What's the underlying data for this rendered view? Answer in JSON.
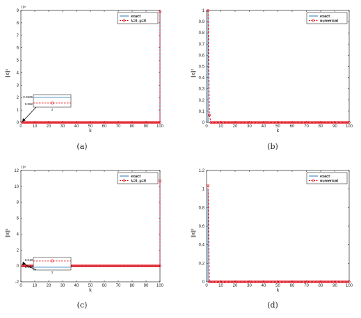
{
  "chart_data": [
    {
      "panel": "a",
      "type": "line",
      "caption": "(a)",
      "xlabel": "k",
      "ylabel": "∥x∥²",
      "y_exponent": "10⁷",
      "xlim": [
        0,
        100
      ],
      "ylim": [
        0,
        9
      ],
      "xticks": [
        0,
        10,
        20,
        30,
        40,
        50,
        60,
        70,
        80,
        90,
        100
      ],
      "yticks": [
        0,
        1,
        2,
        3,
        4,
        5,
        6,
        7,
        8,
        9
      ],
      "legend_position": "top-right",
      "series": [
        {
          "name": "exact",
          "style": "solid",
          "color": "#1f77b4",
          "x": [
            1,
            99,
            100,
            100
          ],
          "y": [
            0,
            0,
            0,
            8.9
          ]
        },
        {
          "name": "λ=0, μ=0",
          "style": "dashed-circle",
          "color": "#e8000b",
          "x_range": [
            1,
            100
          ],
          "spike": {
            "x": 100,
            "y": 8.9
          },
          "base_y": 0
        }
      ],
      "inset": {
        "yticks": [
          "0.0625",
          "0.062"
        ],
        "xtick": "2"
      }
    },
    {
      "panel": "b",
      "type": "line",
      "caption": "(b)",
      "xlabel": "k",
      "ylabel": "∥x∥²",
      "xlim": [
        0,
        100
      ],
      "ylim": [
        0,
        1
      ],
      "xticks": [
        0,
        10,
        20,
        30,
        40,
        50,
        60,
        70,
        80,
        90,
        100
      ],
      "yticks": [
        "0",
        "0.1",
        "0.2",
        "0.3",
        "0.4",
        "0.5",
        "0.6",
        "0.7",
        "0.8",
        "0.9",
        "1"
      ],
      "legend_position": "top-right",
      "series": [
        {
          "name": "exact",
          "style": "solid",
          "color": "#1f77b4",
          "x": [
            1,
            1,
            2,
            100
          ],
          "y": [
            1,
            0,
            0,
            0
          ]
        },
        {
          "name": "numerical",
          "style": "dashed-circle",
          "color": "#e8000b",
          "points": [
            [
              1,
              1.0
            ],
            [
              2,
              0.065
            ]
          ],
          "x_range": [
            3,
            100
          ],
          "base_y": 0
        }
      ]
    },
    {
      "panel": "c",
      "type": "line",
      "caption": "(c)",
      "xlabel": "k",
      "ylabel": "∥x∥²",
      "y_exponent": "10⁷",
      "xlim": [
        0,
        100
      ],
      "ylim": [
        -2,
        12
      ],
      "xticks": [
        0,
        10,
        20,
        30,
        40,
        50,
        60,
        70,
        80,
        90,
        100
      ],
      "yticks": [
        -2,
        0,
        2,
        4,
        6,
        8,
        10,
        12
      ],
      "legend_position": "top-right",
      "series": [
        {
          "name": "exact",
          "style": "solid",
          "color": "#1f77b4",
          "x": [
            1,
            99,
            100,
            100
          ],
          "y": [
            0,
            0,
            0,
            10.7
          ]
        },
        {
          "name": "λ=0, μ=0",
          "style": "dashed-circle",
          "color": "#e8000b",
          "x_range": [
            1,
            100
          ],
          "spike": {
            "x": 100,
            "y": 10.7
          },
          "base_y": 0
        }
      ],
      "inset": {
        "yticks": [
          "0.018",
          "0.016"
        ],
        "xtick": "2"
      }
    },
    {
      "panel": "d",
      "type": "line",
      "caption": "(d)",
      "xlabel": "k",
      "ylabel": "∥x∥²",
      "xlim": [
        0,
        100
      ],
      "ylim": [
        0,
        1.2
      ],
      "xticks": [
        0,
        10,
        20,
        30,
        40,
        50,
        60,
        70,
        80,
        90,
        100
      ],
      "yticks": [
        "0",
        "0.2",
        "0.4",
        "0.6",
        "0.8",
        "1",
        "1.2"
      ],
      "legend_position": "top-right",
      "series": [
        {
          "name": "exact",
          "style": "solid",
          "color": "#1f77b4",
          "x": [
            1,
            1,
            2,
            100
          ],
          "y": [
            1,
            0,
            0,
            0
          ]
        },
        {
          "name": "numerical",
          "style": "dashed-circle",
          "color": "#e8000b",
          "points": [
            [
              1,
              1.04
            ]
          ],
          "x_range": [
            2,
            100
          ],
          "base_y": 0
        }
      ]
    }
  ]
}
